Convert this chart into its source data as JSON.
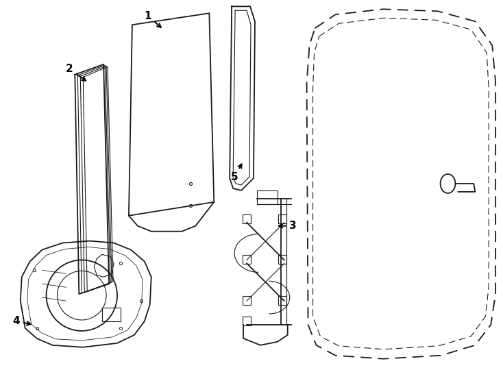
{
  "bg_color": "#ffffff",
  "line_color": "#1a1a1a",
  "label_color": "#000000",
  "figsize": [
    7.34,
    5.4
  ],
  "dpi": 100,
  "lw_main": 1.3,
  "lw_thin": 0.8,
  "label_fontsize": 11
}
